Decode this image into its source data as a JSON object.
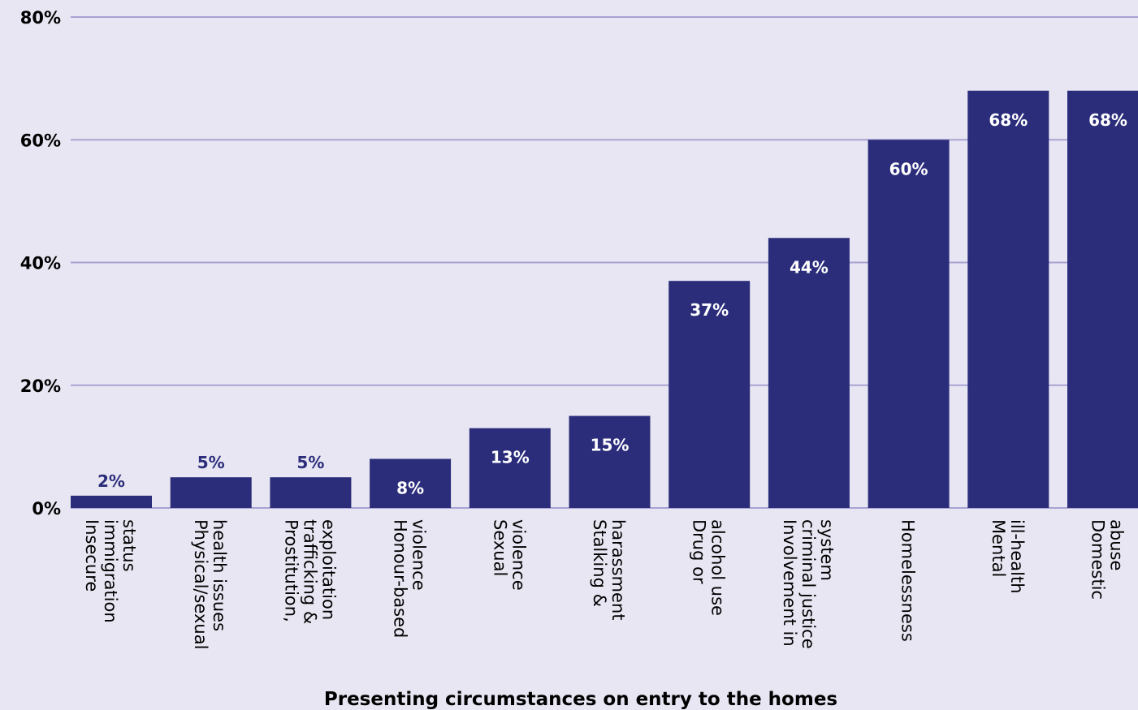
{
  "chart_data": {
    "type": "bar",
    "xlabel": "Presenting circumstances on entry to the homes",
    "ylabel": "",
    "ylim": [
      0,
      80
    ],
    "yticks": [
      "0%",
      "20%",
      "40%",
      "60%",
      "80%"
    ],
    "grid": true,
    "bar_color": "#2b2d7b",
    "grid_color": "#a7a3d3",
    "categories": [
      {
        "label": "Insecure immigration status",
        "lines": [
          "Insecure",
          "immigration",
          "status"
        ],
        "value": 2,
        "label_text": "2%"
      },
      {
        "label": "Physical/sexual health issues",
        "lines": [
          "Physical/sexual",
          "health issues"
        ],
        "value": 5,
        "label_text": "5%"
      },
      {
        "label": "Prostitution, trafficking & exploitation",
        "lines": [
          "Prostitution,",
          "trafficking &",
          "exploitation"
        ],
        "value": 5,
        "label_text": "5%"
      },
      {
        "label": "Honour-based violence",
        "lines": [
          "Honour-based",
          "violence"
        ],
        "value": 8,
        "label_text": "8%"
      },
      {
        "label": "Sexual violence",
        "lines": [
          "Sexual",
          "violence"
        ],
        "value": 13,
        "label_text": "13%"
      },
      {
        "label": "Stalking & harassment",
        "lines": [
          "Stalking &",
          "harassment"
        ],
        "value": 15,
        "label_text": "15%"
      },
      {
        "label": "Drug or alcohol use",
        "lines": [
          "Drug or",
          "alcohol use"
        ],
        "value": 37,
        "label_text": "37%"
      },
      {
        "label": "Involvement in criminal justice system",
        "lines": [
          "Involvement in",
          "criminal justice",
          "system"
        ],
        "value": 44,
        "label_text": "44%"
      },
      {
        "label": "Homelessness",
        "lines": [
          "Homelessness"
        ],
        "value": 60,
        "label_text": "60%"
      },
      {
        "label": "Mental ill-health",
        "lines": [
          "Mental",
          "ill-health"
        ],
        "value": 68,
        "label_text": "68%"
      },
      {
        "label": "Domestic abuse",
        "lines": [
          "Domestic",
          "abuse"
        ],
        "value": 68,
        "label_text": "68%"
      }
    ]
  }
}
